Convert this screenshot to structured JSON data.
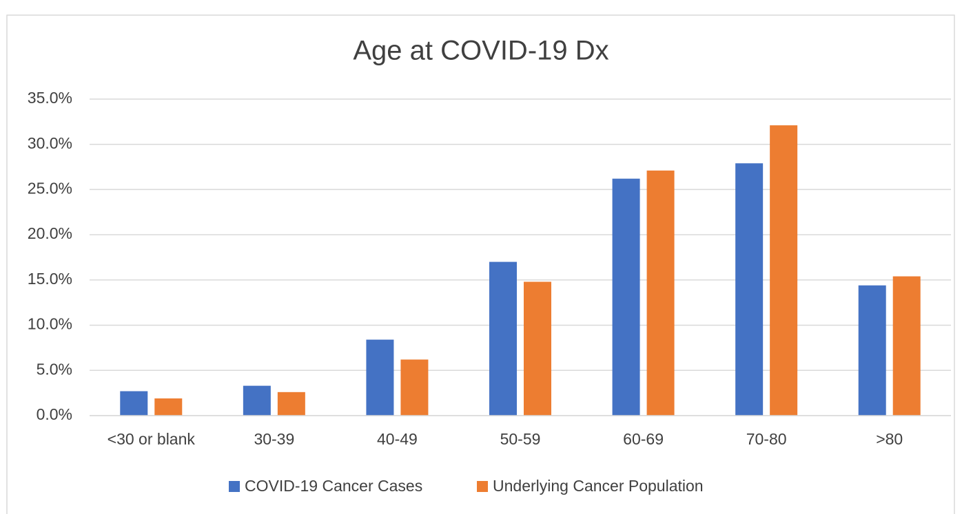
{
  "chart_data": {
    "type": "bar",
    "title": "Age at COVID-19 Dx",
    "categories": [
      "<30 or blank",
      "30-39",
      "40-49",
      "50-59",
      "60-69",
      "70-80",
      ">80"
    ],
    "series": [
      {
        "name": "COVID-19 Cancer Cases",
        "color": "#4472c4",
        "values": [
          2.7,
          3.3,
          8.4,
          17.0,
          26.2,
          27.9,
          14.4
        ]
      },
      {
        "name": "Underlying Cancer Population",
        "color": "#ed7d31",
        "values": [
          1.9,
          2.6,
          6.2,
          14.8,
          27.1,
          32.1,
          15.4
        ]
      }
    ],
    "ylim": [
      0,
      35
    ],
    "yticks": [
      {
        "value": 0,
        "label": "0.0%"
      },
      {
        "value": 5,
        "label": "5.0%"
      },
      {
        "value": 10,
        "label": "10.0%"
      },
      {
        "value": 15,
        "label": "15.0%"
      },
      {
        "value": 20,
        "label": "20.0%"
      },
      {
        "value": 25,
        "label": "25.0%"
      },
      {
        "value": 30,
        "label": "30.0%"
      },
      {
        "value": 35,
        "label": "35.0%"
      }
    ],
    "grid": true,
    "legend": "bottom"
  }
}
